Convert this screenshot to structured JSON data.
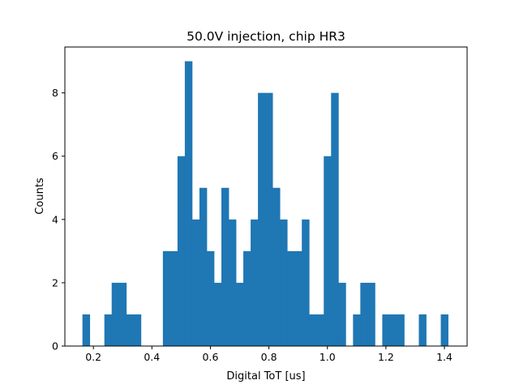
{
  "chart_data": {
    "type": "bar",
    "title": "50.0V injection, chip HR3",
    "xlabel": "Digital ToT [us]",
    "ylabel": "Counts",
    "xlim": [
      0.1025,
      1.4775
    ],
    "ylim": [
      0,
      9.45
    ],
    "xticks": [
      0.2,
      0.4,
      0.6,
      0.8,
      1.0,
      1.2,
      1.4
    ],
    "xtick_labels": [
      "0.2",
      "0.4",
      "0.6",
      "0.8",
      "1.0",
      "1.2",
      "1.4"
    ],
    "yticks": [
      0,
      2,
      4,
      6,
      8
    ],
    "ytick_labels": [
      "0",
      "2",
      "4",
      "6",
      "8"
    ],
    "grid": false,
    "color": "#1f77b4",
    "bin_width": 0.025,
    "bin_start": 0.1625,
    "counts": [
      1,
      0,
      0,
      1,
      2,
      2,
      1,
      1,
      0,
      0,
      0,
      3,
      3,
      6,
      9,
      4,
      5,
      3,
      2,
      5,
      4,
      2,
      3,
      4,
      8,
      8,
      5,
      4,
      3,
      3,
      4,
      1,
      1,
      6,
      8,
      2,
      0,
      1,
      2,
      2,
      0,
      1,
      1,
      1,
      0,
      0,
      1,
      0,
      0,
      1
    ]
  }
}
